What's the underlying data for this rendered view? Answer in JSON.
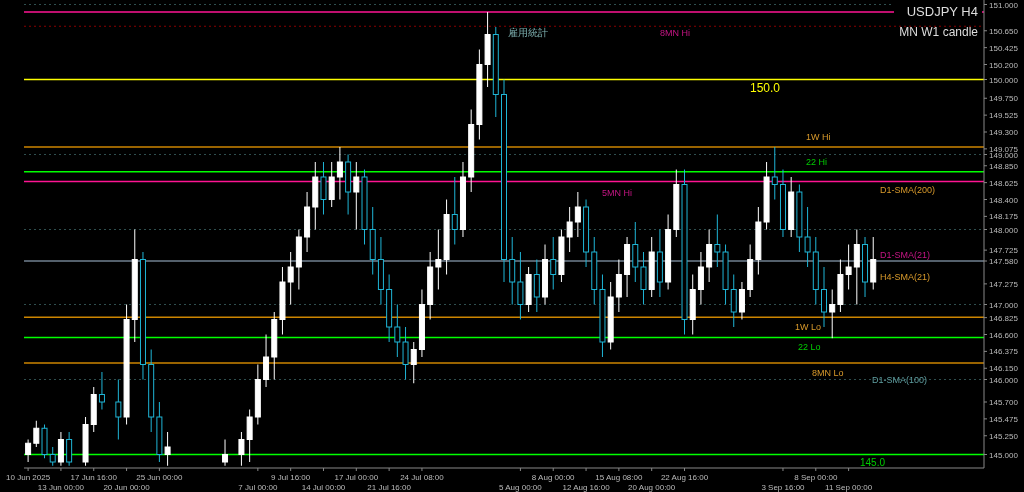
{
  "chart_data": {
    "type": "candlestick",
    "title": "USDJPY H4",
    "subtitle": "MN W1 candle",
    "categories": [
      "10 Jun 2025",
      null,
      null,
      null,
      "13 Jun 00:00",
      null,
      null,
      null,
      "17 Jun 16:00",
      null,
      null,
      null,
      "20 Jun 00:00",
      null,
      null,
      null,
      "25 Jun 00:00",
      null,
      null,
      null,
      null,
      null,
      null,
      null,
      null,
      null,
      null,
      null,
      "7 Jul 00:00",
      null,
      null,
      null,
      "9 Jul 16:00",
      null,
      null,
      null,
      "14 Jul 00:00",
      null,
      null,
      null,
      "17 Jul 00:00",
      null,
      null,
      null,
      "21 Jul 16:00",
      null,
      null,
      null,
      "24 Jul 08:00",
      null,
      null,
      null,
      null,
      null,
      null,
      null,
      null,
      null,
      null,
      null,
      "5 Aug 00:00",
      null,
      null,
      null,
      "8 Aug 00:00",
      null,
      null,
      null,
      "12 Aug 16:00",
      null,
      null,
      null,
      "15 Aug 08:00",
      null,
      null,
      null,
      "20 Aug 00:00",
      null,
      null,
      null,
      "22 Aug 16:00",
      null,
      null,
      null,
      null,
      null,
      null,
      null,
      null,
      null,
      null,
      null,
      "3 Sep 16:00",
      null,
      null,
      null,
      "8 Sep 00:00",
      null,
      null,
      null,
      "11 Sep 00:00",
      null,
      null,
      null,
      null,
      null,
      null,
      null,
      null,
      null,
      null,
      null,
      null,
      null,
      null,
      null,
      null
    ],
    "ohlc": [
      [
        145.0,
        145.2,
        144.9,
        145.15
      ],
      [
        145.15,
        145.45,
        145.1,
        145.35
      ],
      [
        145.35,
        145.4,
        144.95,
        145.0
      ],
      [
        145.0,
        145.1,
        144.85,
        144.9
      ],
      [
        144.9,
        145.3,
        144.85,
        145.2
      ],
      [
        145.2,
        145.3,
        144.85,
        144.9
      ],
      null,
      [
        144.9,
        145.5,
        144.85,
        145.4
      ],
      [
        145.4,
        145.9,
        145.3,
        145.8
      ],
      [
        145.8,
        146.1,
        145.6,
        145.7
      ],
      null,
      [
        145.7,
        146.0,
        145.2,
        145.5
      ],
      [
        145.5,
        147.0,
        145.4,
        146.8
      ],
      [
        146.8,
        148.0,
        146.5,
        147.6
      ],
      [
        147.6,
        147.7,
        146.0,
        146.2
      ],
      [
        146.2,
        146.4,
        145.3,
        145.5
      ],
      [
        145.5,
        145.7,
        144.9,
        145.0
      ],
      [
        145.0,
        145.3,
        144.85,
        145.1
      ],
      null,
      null,
      null,
      null,
      null,
      null,
      [
        144.9,
        145.2,
        144.85,
        145.0
      ],
      null,
      [
        145.0,
        145.3,
        144.85,
        145.2
      ],
      [
        145.2,
        145.6,
        144.9,
        145.5
      ],
      [
        145.5,
        146.2,
        145.4,
        146.0
      ],
      [
        146.0,
        146.6,
        145.9,
        146.3
      ],
      [
        146.3,
        146.9,
        146.0,
        146.8
      ],
      [
        146.8,
        147.5,
        146.6,
        147.3
      ],
      [
        147.3,
        147.7,
        147.0,
        147.5
      ],
      [
        147.5,
        148.0,
        147.2,
        147.9
      ],
      [
        147.9,
        148.5,
        147.7,
        148.3
      ],
      [
        148.3,
        148.9,
        148.0,
        148.7
      ],
      [
        148.7,
        148.9,
        148.2,
        148.4
      ],
      [
        148.4,
        148.9,
        148.3,
        148.7
      ],
      [
        148.7,
        149.1,
        148.4,
        148.9
      ],
      [
        148.9,
        149.0,
        148.2,
        148.5
      ],
      [
        148.5,
        148.9,
        148.0,
        148.7
      ],
      [
        148.7,
        148.8,
        147.8,
        148.0
      ],
      [
        148.0,
        148.3,
        147.4,
        147.6
      ],
      [
        147.6,
        147.9,
        147.0,
        147.2
      ],
      [
        147.2,
        147.4,
        146.5,
        146.7
      ],
      [
        146.7,
        147.0,
        146.3,
        146.5
      ],
      [
        146.5,
        146.7,
        146.0,
        146.2
      ],
      [
        146.2,
        146.5,
        145.95,
        146.4
      ],
      [
        146.4,
        147.2,
        146.3,
        147.0
      ],
      [
        147.0,
        147.7,
        146.8,
        147.5
      ],
      [
        147.5,
        148.0,
        147.2,
        147.6
      ],
      [
        147.6,
        148.4,
        147.4,
        148.2
      ],
      [
        148.2,
        148.7,
        147.8,
        148.0
      ],
      [
        148.0,
        148.9,
        147.9,
        148.7
      ],
      [
        148.7,
        149.6,
        148.5,
        149.4
      ],
      [
        149.4,
        150.4,
        149.2,
        150.2
      ],
      [
        150.2,
        150.9,
        149.9,
        150.6
      ],
      [
        150.6,
        150.7,
        149.5,
        149.8
      ],
      [
        149.8,
        150.0,
        147.3,
        147.6
      ],
      [
        147.6,
        147.9,
        147.0,
        147.3
      ],
      [
        147.3,
        147.7,
        146.8,
        147.0
      ],
      [
        147.0,
        147.5,
        146.9,
        147.4
      ],
      [
        147.4,
        147.6,
        146.9,
        147.1
      ],
      [
        147.1,
        147.8,
        147.0,
        147.6
      ],
      [
        147.6,
        147.9,
        147.2,
        147.4
      ],
      [
        147.4,
        148.0,
        147.3,
        147.9
      ],
      [
        147.9,
        148.3,
        147.7,
        148.1
      ],
      [
        148.1,
        148.5,
        147.9,
        148.3
      ],
      [
        148.3,
        148.4,
        147.5,
        147.7
      ],
      [
        147.7,
        147.9,
        147.0,
        147.2
      ],
      [
        147.2,
        147.4,
        146.3,
        146.5
      ],
      [
        146.5,
        147.3,
        146.4,
        147.1
      ],
      [
        147.1,
        147.6,
        146.9,
        147.4
      ],
      [
        147.4,
        147.9,
        147.1,
        147.8
      ],
      [
        147.8,
        148.1,
        147.3,
        147.5
      ],
      [
        147.5,
        147.7,
        147.0,
        147.2
      ],
      [
        147.2,
        147.9,
        147.1,
        147.7
      ],
      [
        147.7,
        148.0,
        147.1,
        147.3
      ],
      [
        147.3,
        148.2,
        147.2,
        148.0
      ],
      [
        148.0,
        148.8,
        147.9,
        148.6
      ],
      [
        148.6,
        148.8,
        146.6,
        146.8
      ],
      [
        146.8,
        147.4,
        146.6,
        147.2
      ],
      [
        147.2,
        147.7,
        147.0,
        147.5
      ],
      [
        147.5,
        148.0,
        147.3,
        147.8
      ],
      [
        147.8,
        148.2,
        147.5,
        147.7
      ],
      [
        147.7,
        147.8,
        147.0,
        147.2
      ],
      [
        147.2,
        147.4,
        146.7,
        146.9
      ],
      [
        146.9,
        147.3,
        146.8,
        147.2
      ],
      [
        147.2,
        147.8,
        147.1,
        147.6
      ],
      [
        147.6,
        148.3,
        147.4,
        148.1
      ],
      [
        148.1,
        148.9,
        148.0,
        148.7
      ],
      [
        148.7,
        149.1,
        148.4,
        148.6
      ],
      [
        148.6,
        148.8,
        147.9,
        148.0
      ],
      [
        148.0,
        148.7,
        147.9,
        148.5
      ],
      [
        148.5,
        148.6,
        147.7,
        147.9
      ],
      [
        147.9,
        148.3,
        147.5,
        147.7
      ],
      [
        147.7,
        147.9,
        147.0,
        147.2
      ],
      [
        147.2,
        147.5,
        146.7,
        146.9
      ],
      [
        146.9,
        147.2,
        146.55,
        147.0
      ],
      [
        147.0,
        147.6,
        146.9,
        147.4
      ],
      [
        147.4,
        147.8,
        147.2,
        147.5
      ],
      [
        147.5,
        148.0,
        147.0,
        147.8
      ],
      [
        147.8,
        147.9,
        147.1,
        147.3
      ],
      [
        147.3,
        147.9,
        147.2,
        147.6
      ],
      null,
      null,
      null,
      null,
      null,
      null,
      null,
      null,
      null,
      null,
      null,
      null,
      null
    ],
    "ylim": [
      144.82,
      151.06
    ],
    "yticks": [
      {
        "value": 151,
        "label": "151.000"
      },
      {
        "value": 150.65,
        "label": "150.650"
      },
      {
        "value": 150.425,
        "label": "150.425"
      },
      {
        "value": 150.2,
        "label": "150.200"
      },
      {
        "value": 150,
        "label": "150.000"
      },
      {
        "value": 149.75,
        "label": "149.750"
      },
      {
        "value": 149.525,
        "label": "149.525"
      },
      {
        "value": 149.3,
        "label": "149.300"
      },
      {
        "value": 149.075,
        "label": "149.075"
      },
      {
        "value": 149,
        "label": "149.000"
      },
      {
        "value": 148.85,
        "label": "148.850"
      },
      {
        "value": 148.625,
        "label": "148.625"
      },
      {
        "value": 148.4,
        "label": "148.400"
      },
      {
        "value": 148.175,
        "label": "148.175"
      },
      {
        "value": 148,
        "label": "148.000"
      },
      {
        "value": 147.725,
        "label": "147.725"
      },
      {
        "value": 147.58,
        "label": "147.580"
      },
      {
        "value": 147.275,
        "label": "147.275"
      },
      {
        "value": 147,
        "label": "147.000"
      },
      {
        "value": 146.825,
        "label": "146.825"
      },
      {
        "value": 146.6,
        "label": "146.600"
      },
      {
        "value": 146.375,
        "label": "146.375"
      },
      {
        "value": 146.15,
        "label": "146.150"
      },
      {
        "value": 146,
        "label": "146.000"
      },
      {
        "value": 145.7,
        "label": "145.700"
      },
      {
        "value": 145.475,
        "label": "145.475"
      },
      {
        "value": 145.25,
        "label": "145.250"
      },
      {
        "value": 145,
        "label": "145.000"
      }
    ],
    "ref_lines": [
      {
        "axis": "y",
        "value": 150.9,
        "color": "#ff1493"
      },
      {
        "axis": "y",
        "value": 150.71,
        "color": "#8b0000",
        "line_style": "dotted"
      },
      {
        "axis": "y",
        "value": 150.0,
        "color": "#ffff00"
      },
      {
        "axis": "y",
        "value": 149.1,
        "color": "#cd8500"
      },
      {
        "axis": "y",
        "value": 148.77,
        "color": "#00ff00"
      },
      {
        "axis": "y",
        "value": 148.64,
        "color": "#ff1493"
      },
      {
        "axis": "y",
        "value": 147.58,
        "color": "#708090"
      },
      {
        "axis": "y",
        "value": 146.83,
        "color": "#cd8500"
      },
      {
        "axis": "y",
        "value": 146.56,
        "color": "#00ff00"
      },
      {
        "axis": "y",
        "value": 146.22,
        "color": "#cd8500"
      },
      {
        "axis": "y",
        "value": 145.0,
        "color": "#00ff00"
      },
      {
        "axis": "y",
        "value": 151,
        "color": "#2f4f4f",
        "line_style": "dotted"
      },
      {
        "axis": "y",
        "value": 149,
        "color": "#2f4f4f",
        "line_style": "dotted"
      },
      {
        "axis": "y",
        "value": 148,
        "color": "#2f4f4f",
        "line_style": "dotted"
      },
      {
        "axis": "y",
        "value": 147,
        "color": "#2f4f4f",
        "line_style": "dotted"
      },
      {
        "axis": "y",
        "value": 146,
        "color": "#2f4f4f",
        "line_style": "dotted"
      }
    ],
    "annotations": [
      "雇用統計",
      "8MN Hi",
      "150.0",
      "1W Hi",
      "22 Hi",
      "5MN Hi",
      "D1-SMA(200)",
      "D1-SMA(21)",
      "H4-SMA(21)",
      "1W Lo",
      "22 Lo",
      "8MN Lo",
      "D1-SMA(100)",
      "145.0"
    ]
  }
}
